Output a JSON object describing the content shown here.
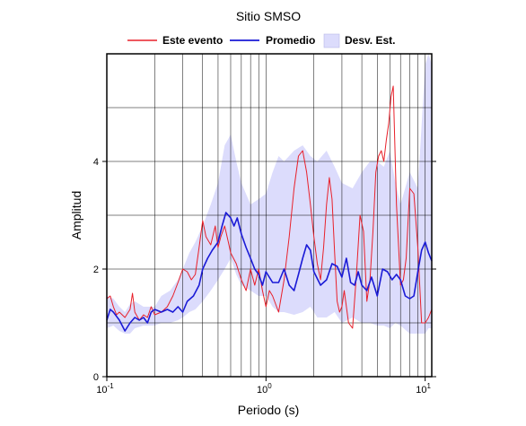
{
  "chart_data": {
    "type": "line",
    "title": "Sitio SMSO",
    "xlabel": "Periodo (s)",
    "ylabel": "Amplitud",
    "xscale": "log",
    "xlim": [
      0.1,
      11
    ],
    "ylim": [
      0,
      6
    ],
    "yticks": [
      0,
      2,
      4
    ],
    "xtick_labels": [
      {
        "base": "10",
        "exp": "-1",
        "value": 0.1
      },
      {
        "base": "10",
        "exp": "0",
        "value": 1
      },
      {
        "base": "10",
        "exp": "1",
        "value": 10
      }
    ],
    "grid": true,
    "legend_position": "top",
    "legend": [
      "Este evento",
      "Promedio",
      "Desv. Est."
    ],
    "series": [
      {
        "name": "Este evento",
        "color": "#e8202a",
        "x": [
          0.1,
          0.105,
          0.11,
          0.115,
          0.12,
          0.13,
          0.14,
          0.145,
          0.15,
          0.16,
          0.17,
          0.18,
          0.19,
          0.2,
          0.22,
          0.24,
          0.26,
          0.28,
          0.3,
          0.32,
          0.34,
          0.36,
          0.38,
          0.4,
          0.42,
          0.45,
          0.48,
          0.5,
          0.52,
          0.55,
          0.58,
          0.6,
          0.65,
          0.7,
          0.75,
          0.8,
          0.85,
          0.9,
          0.95,
          1.0,
          1.05,
          1.1,
          1.2,
          1.3,
          1.4,
          1.5,
          1.6,
          1.7,
          1.8,
          1.9,
          2.0,
          2.1,
          2.2,
          2.3,
          2.4,
          2.5,
          2.6,
          2.7,
          2.8,
          2.9,
          3.0,
          3.1,
          3.3,
          3.5,
          3.7,
          3.9,
          4.1,
          4.3,
          4.5,
          4.7,
          4.9,
          5.1,
          5.3,
          5.5,
          5.7,
          5.9,
          6.1,
          6.3,
          6.6,
          7.0,
          7.3,
          7.6,
          8.0,
          8.5,
          9.0,
          9.5,
          10.0,
          10.5,
          11.0
        ],
        "y": [
          1.45,
          1.5,
          1.3,
          1.15,
          1.2,
          1.1,
          1.25,
          1.55,
          1.2,
          1.05,
          1.15,
          1.1,
          1.3,
          1.15,
          1.2,
          1.3,
          1.5,
          1.75,
          2.0,
          1.95,
          1.8,
          1.9,
          2.4,
          2.9,
          2.6,
          2.45,
          2.8,
          2.4,
          2.6,
          2.8,
          2.5,
          2.3,
          2.1,
          1.8,
          1.6,
          2.0,
          1.7,
          2.0,
          1.6,
          1.3,
          1.6,
          1.5,
          1.2,
          1.8,
          2.6,
          3.5,
          4.1,
          4.2,
          3.8,
          3.2,
          2.6,
          2.1,
          1.8,
          2.4,
          3.2,
          3.7,
          3.3,
          2.3,
          1.4,
          1.2,
          1.3,
          1.6,
          1.0,
          0.9,
          1.9,
          3.0,
          2.7,
          1.4,
          1.8,
          2.7,
          3.8,
          4.1,
          4.2,
          4.0,
          4.4,
          4.7,
          5.2,
          5.4,
          3.2,
          1.7,
          1.8,
          2.2,
          3.5,
          3.4,
          2.4,
          1.0,
          1.0,
          1.1,
          1.25
        ]
      },
      {
        "name": "Promedio",
        "color": "#1a1ad6",
        "x": [
          0.1,
          0.105,
          0.11,
          0.12,
          0.13,
          0.14,
          0.15,
          0.16,
          0.17,
          0.18,
          0.19,
          0.2,
          0.22,
          0.24,
          0.26,
          0.28,
          0.3,
          0.32,
          0.35,
          0.38,
          0.4,
          0.43,
          0.46,
          0.5,
          0.53,
          0.56,
          0.6,
          0.63,
          0.66,
          0.7,
          0.75,
          0.8,
          0.85,
          0.9,
          0.95,
          1.0,
          1.1,
          1.2,
          1.3,
          1.4,
          1.5,
          1.6,
          1.7,
          1.8,
          1.9,
          2.0,
          2.2,
          2.4,
          2.6,
          2.8,
          3.0,
          3.2,
          3.4,
          3.6,
          3.8,
          4.0,
          4.3,
          4.6,
          5.0,
          5.4,
          5.8,
          6.2,
          6.6,
          7.0,
          7.5,
          8.0,
          8.5,
          9.0,
          9.5,
          10.0,
          10.5,
          11.0
        ],
        "y": [
          1.05,
          1.25,
          1.2,
          1.05,
          0.85,
          1.0,
          1.1,
          1.05,
          1.1,
          1.0,
          1.2,
          1.25,
          1.2,
          1.25,
          1.2,
          1.3,
          1.2,
          1.4,
          1.5,
          1.7,
          2.0,
          2.2,
          2.35,
          2.5,
          2.8,
          3.05,
          2.95,
          2.8,
          2.95,
          2.65,
          2.4,
          2.2,
          2.0,
          1.9,
          1.7,
          1.95,
          1.75,
          1.75,
          2.0,
          1.7,
          1.6,
          1.9,
          2.2,
          2.45,
          2.35,
          1.95,
          1.7,
          1.8,
          2.1,
          2.05,
          1.85,
          2.2,
          1.75,
          1.7,
          1.95,
          1.7,
          1.6,
          1.85,
          1.5,
          2.0,
          1.95,
          1.8,
          1.9,
          1.8,
          1.5,
          1.45,
          1.5,
          1.95,
          2.35,
          2.5,
          2.3,
          2.15
        ]
      },
      {
        "name": "Desv. Est.",
        "color": "#dcdcfc",
        "x": [
          0.1,
          0.11,
          0.12,
          0.13,
          0.14,
          0.15,
          0.17,
          0.2,
          0.22,
          0.25,
          0.28,
          0.3,
          0.33,
          0.36,
          0.4,
          0.45,
          0.5,
          0.55,
          0.6,
          0.65,
          0.7,
          0.8,
          0.9,
          1.0,
          1.1,
          1.2,
          1.3,
          1.5,
          1.7,
          1.9,
          2.1,
          2.4,
          2.7,
          3.0,
          3.5,
          4.0,
          4.5,
          5.0,
          5.5,
          6.0,
          6.5,
          7.0,
          8.0,
          9.0,
          10.0,
          10.5,
          11.0
        ],
        "upper": [
          1.5,
          1.45,
          1.3,
          1.2,
          1.35,
          1.4,
          1.3,
          1.3,
          1.5,
          1.6,
          1.8,
          2.0,
          2.3,
          2.5,
          2.8,
          3.2,
          3.6,
          4.3,
          4.5,
          4.0,
          3.6,
          3.2,
          3.3,
          3.4,
          3.8,
          4.1,
          4.0,
          4.2,
          4.3,
          4.1,
          4.0,
          4.2,
          3.9,
          3.6,
          3.5,
          3.8,
          4.0,
          4.0,
          3.9,
          4.2,
          3.6,
          3.2,
          3.8,
          3.5,
          5.8,
          6.0,
          5.8
        ],
        "lower": [
          0.9,
          0.95,
          0.85,
          0.8,
          0.8,
          0.9,
          0.95,
          0.95,
          1.0,
          1.0,
          1.05,
          1.1,
          1.2,
          1.25,
          1.4,
          1.6,
          1.8,
          2.0,
          2.2,
          1.9,
          1.7,
          1.6,
          1.5,
          1.5,
          1.3,
          1.2,
          1.2,
          1.15,
          1.2,
          1.3,
          1.1,
          1.1,
          1.2,
          1.0,
          1.1,
          1.0,
          1.0,
          0.95,
          0.95,
          0.9,
          1.0,
          0.95,
          0.8,
          0.8,
          0.8,
          0.9,
          0.9
        ]
      }
    ]
  }
}
